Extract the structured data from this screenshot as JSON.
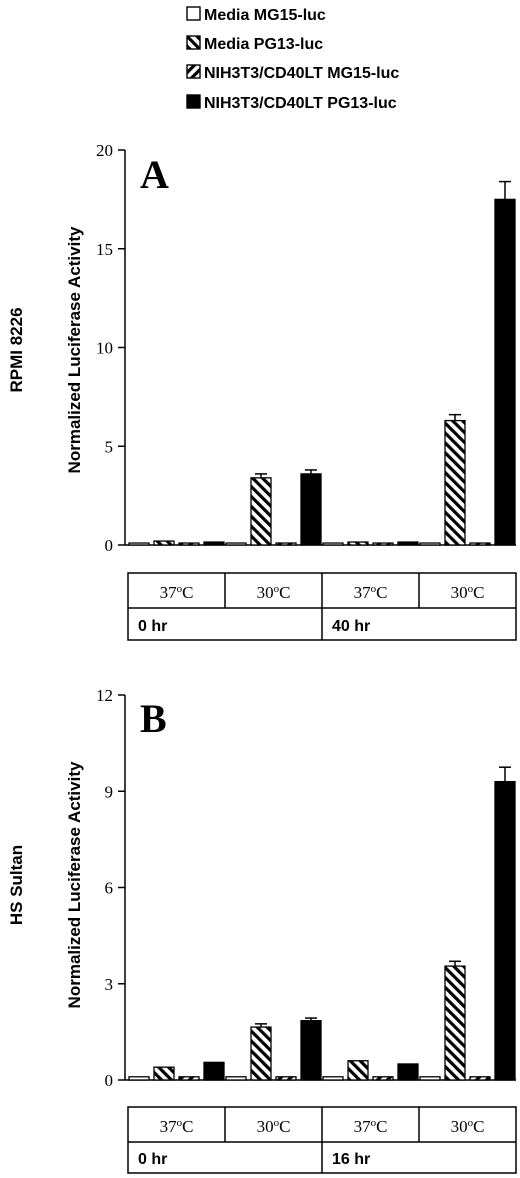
{
  "legend": [
    {
      "label": "Media MG15-luc",
      "fill": "white"
    },
    {
      "label": "Media PG13-luc",
      "fill": "hatch-right"
    },
    {
      "label": "NIH3T3/CD40LT MG15-luc",
      "fill": "hatch-left"
    },
    {
      "label": "NIH3T3/CD40LT PG13-luc",
      "fill": "black"
    }
  ],
  "chart_data": [
    {
      "type": "bar",
      "panel_label": "A",
      "cell_line": "RPMI 8226",
      "ylabel": "Normalized Luciferase Activity",
      "ylim": [
        0,
        20
      ],
      "yticks": [
        "0",
        "5",
        "10",
        "15",
        "20"
      ],
      "tick_values": [
        0,
        5,
        10,
        15,
        20
      ],
      "groups": [
        {
          "condition": "37",
          "time": "0 hr"
        },
        {
          "condition": "30",
          "time": "0 hr"
        },
        {
          "condition": "37",
          "time": "40 hr"
        },
        {
          "condition": "30",
          "time": "40 hr"
        }
      ],
      "time_labels": [
        "0 hr",
        "40 hr"
      ],
      "series": [
        {
          "name": "Media MG15-luc",
          "values": [
            0.1,
            0.1,
            0.1,
            0.1
          ],
          "errors": [
            0,
            0,
            0,
            0
          ]
        },
        {
          "name": "Media PG13-luc",
          "values": [
            0.2,
            3.4,
            0.15,
            6.3
          ],
          "errors": [
            0,
            0.2,
            0,
            0.3
          ]
        },
        {
          "name": "NIH3T3/CD40LT MG15-luc",
          "values": [
            0.1,
            0.1,
            0.1,
            0.1
          ],
          "errors": [
            0,
            0,
            0,
            0
          ]
        },
        {
          "name": "NIH3T3/CD40LT PG13-luc",
          "values": [
            0.15,
            3.6,
            0.15,
            17.5
          ],
          "errors": [
            0,
            0.2,
            0,
            0.9
          ]
        }
      ]
    },
    {
      "type": "bar",
      "panel_label": "B",
      "cell_line": "HS Sultan",
      "ylabel": "Normalized Luciferase Activity",
      "ylim": [
        0,
        12
      ],
      "yticks": [
        "0",
        "3",
        "6",
        "9",
        "12"
      ],
      "tick_values": [
        0,
        3,
        6,
        9,
        12
      ],
      "groups": [
        {
          "condition": "37",
          "time": "0 hr"
        },
        {
          "condition": "30",
          "time": "0 hr"
        },
        {
          "condition": "37",
          "time": "16 hr"
        },
        {
          "condition": "30",
          "time": "16 hr"
        }
      ],
      "time_labels": [
        "0 hr",
        "16 hr"
      ],
      "series": [
        {
          "name": "Media MG15-luc",
          "values": [
            0.1,
            0.1,
            0.1,
            0.1
          ],
          "errors": [
            0,
            0,
            0,
            0
          ]
        },
        {
          "name": "Media PG13-luc",
          "values": [
            0.4,
            1.65,
            0.6,
            3.55
          ],
          "errors": [
            0,
            0.1,
            0,
            0.15
          ]
        },
        {
          "name": "NIH3T3/CD40LT MG15-luc",
          "values": [
            0.1,
            0.1,
            0.1,
            0.1
          ],
          "errors": [
            0,
            0,
            0,
            0
          ]
        },
        {
          "name": "NIH3T3/CD40LT PG13-luc",
          "values": [
            0.55,
            1.85,
            0.5,
            9.3
          ],
          "errors": [
            0,
            0.08,
            0,
            0.45
          ]
        }
      ]
    }
  ],
  "degree_unit": "oC"
}
